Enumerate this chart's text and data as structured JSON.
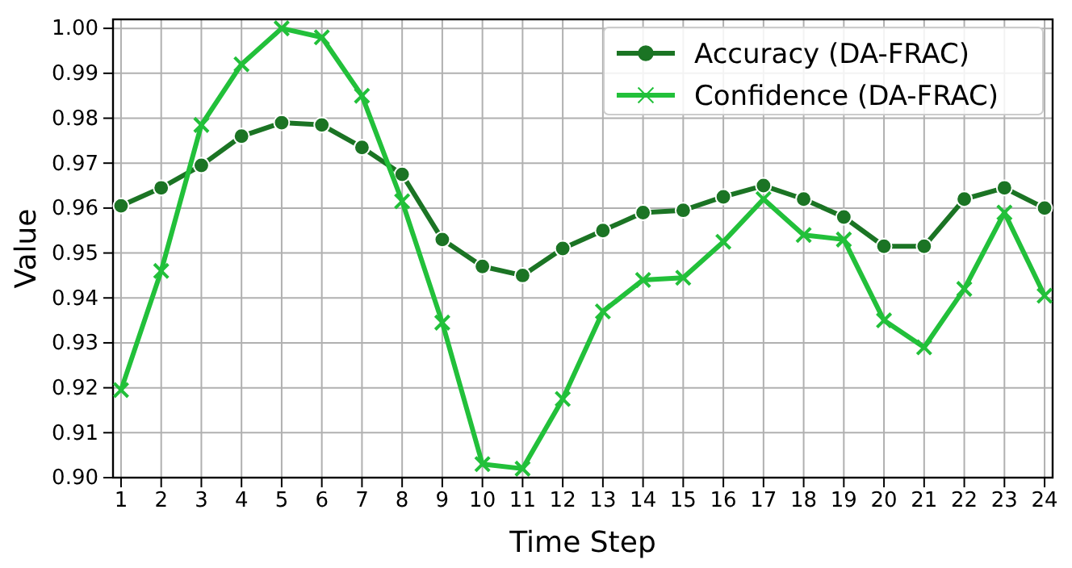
{
  "chart_data": {
    "type": "line",
    "xlabel": "Time Step",
    "ylabel": "Value",
    "x": [
      1,
      2,
      3,
      4,
      5,
      6,
      7,
      8,
      9,
      10,
      11,
      12,
      13,
      14,
      15,
      16,
      17,
      18,
      19,
      20,
      21,
      22,
      23,
      24
    ],
    "xlim": [
      0.8,
      24.2
    ],
    "xticks": [
      1,
      2,
      3,
      4,
      5,
      6,
      7,
      8,
      9,
      10,
      11,
      12,
      13,
      14,
      15,
      16,
      17,
      18,
      19,
      20,
      21,
      22,
      23,
      24
    ],
    "ylim": [
      0.9,
      1.002
    ],
    "yticks": [
      {
        "value": 0.9,
        "label": "0.90"
      },
      {
        "value": 0.91,
        "label": "0.91"
      },
      {
        "value": 0.92,
        "label": "0.92"
      },
      {
        "value": 0.93,
        "label": "0.93"
      },
      {
        "value": 0.94,
        "label": "0.94"
      },
      {
        "value": 0.95,
        "label": "0.95"
      },
      {
        "value": 0.96,
        "label": "0.96"
      },
      {
        "value": 0.97,
        "label": "0.97"
      },
      {
        "value": 0.98,
        "label": "0.98"
      },
      {
        "value": 0.99,
        "label": "0.99"
      },
      {
        "value": 1.0,
        "label": "1.00"
      }
    ],
    "grid": true,
    "legend": "top right",
    "line_style": "solid",
    "series": [
      {
        "name": "Accuracy (DA-FRAC)",
        "color": "#1b7424",
        "marker": "circle",
        "values": [
          0.9605,
          0.9645,
          0.9695,
          0.976,
          0.979,
          0.9785,
          0.9735,
          0.9675,
          0.953,
          0.947,
          0.945,
          0.951,
          0.955,
          0.959,
          0.9595,
          0.9625,
          0.965,
          0.962,
          0.958,
          0.9515,
          0.9515,
          0.962,
          0.9645,
          0.96
        ]
      },
      {
        "name": "Confidence (DA-FRAC)",
        "color": "#22c03a",
        "marker": "cross",
        "values": [
          0.9195,
          0.946,
          0.9785,
          0.992,
          1.0,
          0.998,
          0.985,
          0.9615,
          0.9345,
          0.903,
          0.902,
          0.9175,
          0.937,
          0.944,
          0.9445,
          0.9525,
          0.962,
          0.954,
          0.953,
          0.935,
          0.929,
          0.942,
          0.959,
          0.9405
        ]
      }
    ]
  }
}
